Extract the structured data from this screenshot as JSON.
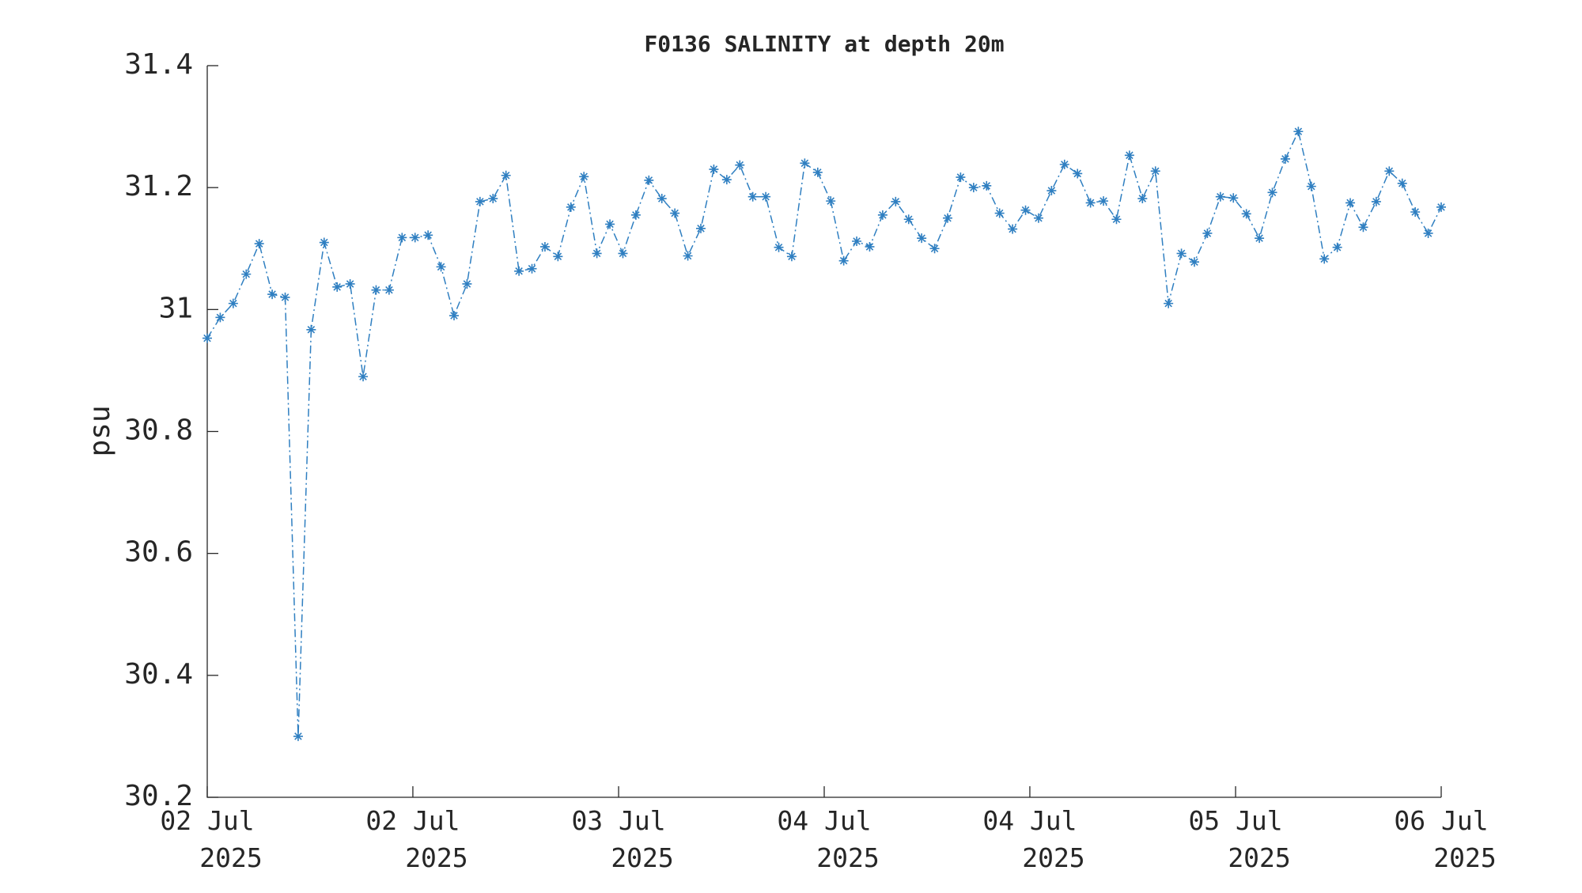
{
  "chart_data": {
    "type": "line",
    "title": "F0136 SALINITY at depth 20m",
    "y_label": "psu",
    "x": [
      0,
      1,
      2,
      3,
      4,
      5,
      6,
      7,
      8,
      9,
      10,
      11,
      12,
      13,
      14,
      15,
      16,
      17,
      18,
      19,
      20,
      21,
      22,
      23,
      24,
      25,
      26,
      27,
      28,
      29,
      30,
      31,
      32,
      33,
      34,
      35,
      36,
      37,
      38,
      39,
      40,
      41,
      42,
      43,
      44,
      45,
      46,
      47,
      48,
      49,
      50,
      51,
      52,
      53,
      54,
      55,
      56,
      57,
      58,
      59,
      60,
      61,
      62,
      63,
      64,
      65,
      66,
      67,
      68,
      69,
      70,
      71,
      72,
      73,
      74,
      75,
      76,
      77,
      78,
      79,
      80,
      81,
      82,
      83,
      84,
      85,
      86,
      87,
      88,
      89,
      90,
      91,
      92,
      93,
      94,
      95
    ],
    "series": [
      {
        "name": "SALINITY",
        "color": "#2f7fc1",
        "marker": "*",
        "line_style": "dashdot",
        "values": [
          30.953,
          30.987,
          31.01,
          31.058,
          31.108,
          31.025,
          31.02,
          30.3,
          30.967,
          31.11,
          31.037,
          31.042,
          30.89,
          31.032,
          31.032,
          31.118,
          31.118,
          31.122,
          31.07,
          30.99,
          31.042,
          31.177,
          31.182,
          31.22,
          31.063,
          31.067,
          31.103,
          31.087,
          31.168,
          31.218,
          31.092,
          31.14,
          31.092,
          31.155,
          31.212,
          31.182,
          31.158,
          31.088,
          31.133,
          31.23,
          31.213,
          31.237,
          31.185,
          31.185,
          31.102,
          31.087,
          31.24,
          31.225,
          31.178,
          31.08,
          31.112,
          31.103,
          31.155,
          31.177,
          31.148,
          31.117,
          31.1,
          31.15,
          31.217,
          31.2,
          31.203,
          31.158,
          31.132,
          31.163,
          31.15,
          31.195,
          31.238,
          31.223,
          31.175,
          31.178,
          31.148,
          31.253,
          31.182,
          31.227,
          31.01,
          31.092,
          31.078,
          31.125,
          31.185,
          31.183,
          31.157,
          31.117,
          31.192,
          31.247,
          31.292,
          31.202,
          31.083,
          31.102,
          31.175,
          31.135,
          31.177,
          31.227,
          31.207,
          31.16,
          31.125,
          31.168
        ]
      }
    ],
    "xlim": [
      0,
      95
    ],
    "xticks": [
      {
        "value": 0,
        "label": "02 Jul 2025"
      },
      {
        "value": 15.83,
        "label": "02 Jul 2025"
      },
      {
        "value": 31.67,
        "label": "03 Jul 2025"
      },
      {
        "value": 47.5,
        "label": "04 Jul 2025"
      },
      {
        "value": 63.33,
        "label": "04 Jul 2025"
      },
      {
        "value": 79.17,
        "label": "05 Jul 2025"
      },
      {
        "value": 95,
        "label": "06 Jul 2025"
      }
    ],
    "ylim": [
      30.2,
      31.4
    ],
    "yticks": [
      {
        "value": 30.2,
        "label": "30.2"
      },
      {
        "value": 30.4,
        "label": "30.4"
      },
      {
        "value": 30.6,
        "label": "30.6"
      },
      {
        "value": 30.8,
        "label": "30.8"
      },
      31,
      {
        "value": 31.2,
        "label": "31.2"
      },
      {
        "value": 31.4,
        "label": "31.4"
      }
    ],
    "grid": false
  }
}
